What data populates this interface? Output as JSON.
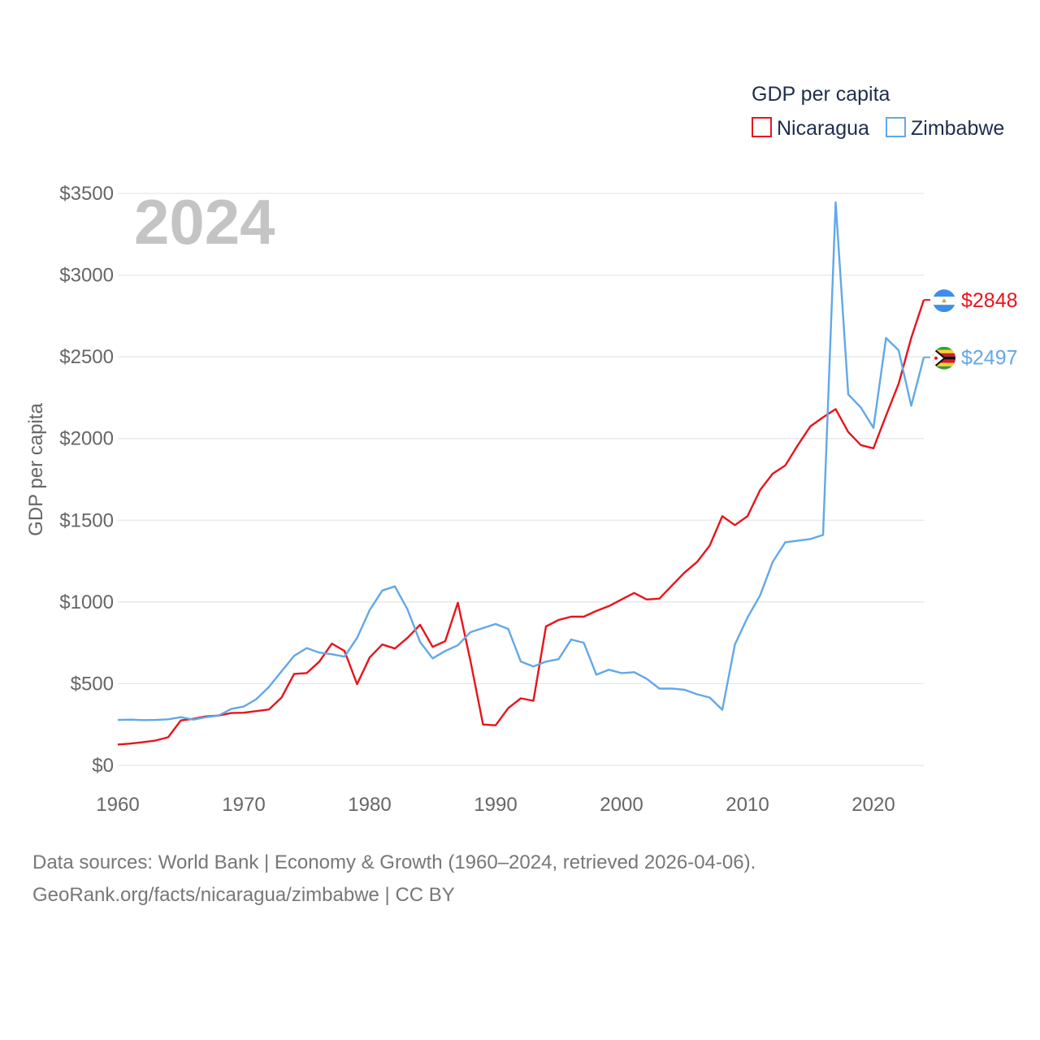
{
  "chart_data": {
    "type": "line",
    "title": "GDP per capita",
    "year_label": "2024",
    "ylabel": "GDP per capita",
    "xlabel": "",
    "xlim": [
      1960,
      2024
    ],
    "ylim": [
      0,
      3500
    ],
    "x_ticks": [
      1960,
      1970,
      1980,
      1990,
      2000,
      2010,
      2020
    ],
    "x_tick_labels": [
      "1960",
      "1970",
      "1980",
      "1990",
      "2000",
      "2010",
      "2020"
    ],
    "y_ticks": [
      0,
      500,
      1000,
      1500,
      2000,
      2500,
      3000,
      3500
    ],
    "y_tick_labels": [
      "$0",
      "$500",
      "$1000",
      "$1500",
      "$2000",
      "$2500",
      "$3000",
      "$3500"
    ],
    "legend_title": "GDP per capita",
    "legend_position": "top-right",
    "grid": true,
    "series": [
      {
        "name": "Nicaragua",
        "color": "#e8141c",
        "end_label": "$2848",
        "flag_icon": "nicaragua-flag-icon",
        "x": [
          1960,
          1961,
          1962,
          1963,
          1964,
          1965,
          1966,
          1967,
          1968,
          1969,
          1970,
          1971,
          1972,
          1973,
          1974,
          1975,
          1976,
          1977,
          1978,
          1979,
          1980,
          1981,
          1982,
          1983,
          1984,
          1985,
          1986,
          1987,
          1988,
          1989,
          1990,
          1991,
          1992,
          1993,
          1994,
          1995,
          1996,
          1997,
          1998,
          1999,
          2000,
          2001,
          2002,
          2003,
          2004,
          2005,
          2006,
          2007,
          2008,
          2009,
          2010,
          2011,
          2012,
          2013,
          2014,
          2015,
          2016,
          2017,
          2018,
          2019,
          2020,
          2021,
          2022,
          2023,
          2024
        ],
        "values": [
          128,
          133,
          142,
          152,
          172,
          275,
          285,
          300,
          305,
          320,
          322,
          332,
          342,
          415,
          560,
          565,
          635,
          745,
          700,
          497,
          660,
          740,
          715,
          780,
          860,
          725,
          760,
          995,
          640,
          250,
          245,
          350,
          410,
          395,
          850,
          890,
          910,
          910,
          945,
          975,
          1015,
          1055,
          1015,
          1020,
          1100,
          1180,
          1245,
          1345,
          1525,
          1470,
          1525,
          1685,
          1785,
          1835,
          1960,
          2075,
          2130,
          2180,
          2040,
          1960,
          1940,
          2140,
          2335,
          2615,
          2848
        ]
      },
      {
        "name": "Zimbabwe",
        "color": "#61a8e8",
        "end_label": "$2497",
        "flag_icon": "zimbabwe-flag-icon",
        "x": [
          1960,
          1961,
          1962,
          1963,
          1964,
          1965,
          1966,
          1967,
          1968,
          1969,
          1970,
          1971,
          1972,
          1973,
          1974,
          1975,
          1976,
          1977,
          1978,
          1979,
          1980,
          1981,
          1982,
          1983,
          1984,
          1985,
          1986,
          1987,
          1988,
          1989,
          1990,
          1991,
          1992,
          1993,
          1994,
          1995,
          1996,
          1997,
          1998,
          1999,
          2000,
          2001,
          2002,
          2003,
          2004,
          2005,
          2006,
          2007,
          2008,
          2009,
          2010,
          2011,
          2012,
          2013,
          2014,
          2015,
          2016,
          2017,
          2018,
          2019,
          2020,
          2021,
          2022,
          2023,
          2024
        ],
        "values": [
          278,
          280,
          277,
          278,
          282,
          295,
          280,
          295,
          305,
          345,
          360,
          405,
          480,
          575,
          670,
          718,
          690,
          680,
          665,
          780,
          950,
          1070,
          1095,
          955,
          755,
          655,
          700,
          735,
          815,
          840,
          865,
          835,
          635,
          605,
          635,
          650,
          770,
          750,
          555,
          585,
          565,
          570,
          530,
          470,
          470,
          463,
          435,
          415,
          340,
          740,
          905,
          1040,
          1245,
          1365,
          1375,
          1385,
          1410,
          3445,
          2270,
          2190,
          2065,
          2615,
          2540,
          2200,
          2497
        ]
      }
    ]
  },
  "footer": {
    "line1": "Data sources: World Bank | Economy & Growth (1960–2024, retrieved 2026-04-06).",
    "line2": "GeoRank.org/facts/nicaragua/zimbabwe | CC BY"
  }
}
